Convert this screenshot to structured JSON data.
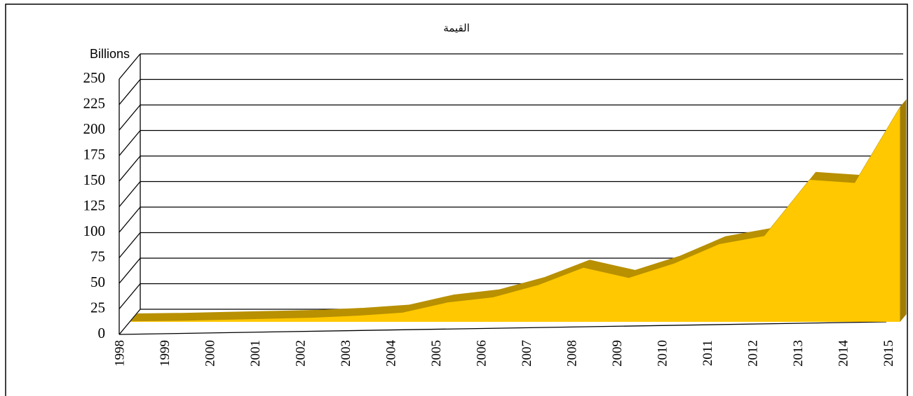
{
  "chart_data": {
    "type": "area3d",
    "title": "القيمة",
    "unit_label": "Billions",
    "categories": [
      "1998",
      "1999",
      "2000",
      "2001",
      "2002",
      "2003",
      "2004",
      "2005",
      "2006",
      "2007",
      "2008",
      "2009",
      "2010",
      "2011",
      "2012",
      "2013",
      "2014",
      "2015"
    ],
    "values": [
      0.5,
      1,
      2,
      3,
      4,
      6,
      9,
      19,
      24,
      36,
      53,
      43,
      57,
      76,
      84,
      139,
      136,
      210
    ],
    "color": "#ffc800",
    "ylim": [
      0,
      250
    ],
    "yticks": [
      0,
      25,
      50,
      75,
      100,
      125,
      150,
      175,
      200,
      225,
      250
    ],
    "grid": true
  }
}
